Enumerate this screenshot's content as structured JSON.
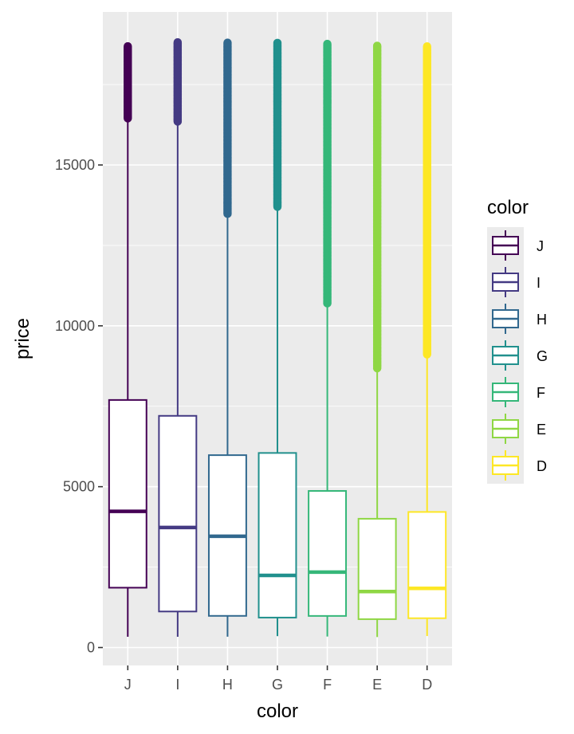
{
  "chart_data": {
    "type": "boxplot",
    "xlabel": "color",
    "ylabel": "price",
    "ylim": [
      -530,
      19300
    ],
    "y_ticks": [
      0,
      5000,
      10000,
      15000
    ],
    "y_tick_labels": [
      "0",
      "5000",
      "10000",
      "15000"
    ],
    "categories": [
      "J",
      "I",
      "H",
      "G",
      "F",
      "E",
      "D"
    ],
    "series": [
      {
        "name": "J",
        "color": "#440154",
        "min": 335,
        "q1": 1860,
        "median": 4234,
        "q3": 7695,
        "whisker_high": 16450,
        "outliers_range": [
          16450,
          18710
        ]
      },
      {
        "name": "I",
        "color": "#443a83",
        "min": 334,
        "q1": 1120,
        "median": 3730,
        "q3": 7202,
        "whisker_high": 16350,
        "outliers_range": [
          16350,
          18823
        ]
      },
      {
        "name": "H",
        "color": "#31688e",
        "min": 337,
        "q1": 984,
        "median": 3460,
        "q3": 5980,
        "whisker_high": 13480,
        "outliers_range": [
          13480,
          18803
        ]
      },
      {
        "name": "G",
        "color": "#21908d",
        "min": 354,
        "q1": 931,
        "median": 2242,
        "q3": 6048,
        "whisker_high": 13700,
        "outliers_range": [
          13700,
          18818
        ]
      },
      {
        "name": "F",
        "color": "#35b779",
        "min": 342,
        "q1": 982,
        "median": 2344,
        "q3": 4868,
        "whisker_high": 10700,
        "outliers_range": [
          10700,
          18791
        ]
      },
      {
        "name": "E",
        "color": "#8fd744",
        "min": 326,
        "q1": 882,
        "median": 1739,
        "q3": 4003,
        "whisker_high": 8680,
        "outliers_range": [
          8680,
          18731
        ]
      },
      {
        "name": "D",
        "color": "#fde725",
        "min": 357,
        "q1": 911,
        "median": 1838,
        "q3": 4214,
        "whisker_high": 9110,
        "outliers_range": [
          9110,
          18693
        ]
      }
    ],
    "legend": {
      "title": "color",
      "position": "right",
      "entries": [
        "J",
        "I",
        "H",
        "G",
        "F",
        "E",
        "D"
      ]
    },
    "background": "#ebebeb",
    "grid": true
  }
}
